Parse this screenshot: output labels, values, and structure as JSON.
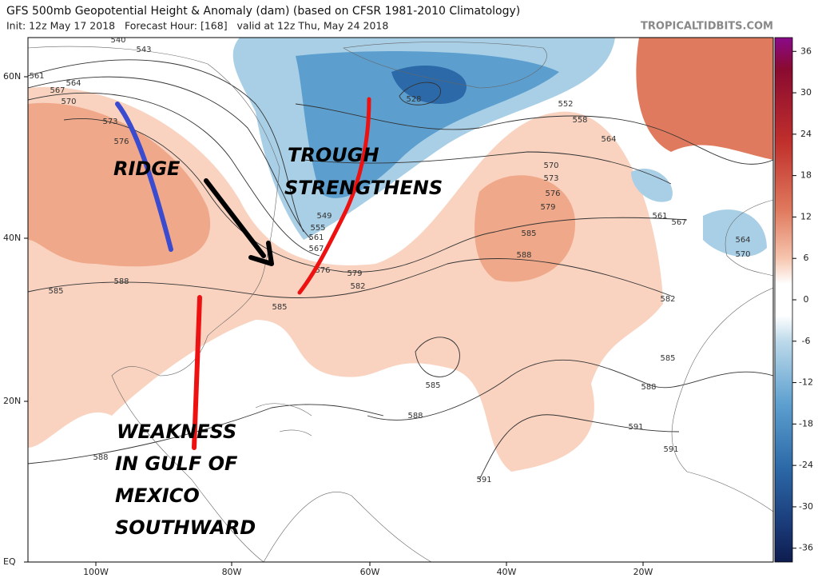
{
  "header": {
    "title": "GFS 500mb Geopotential Height & Anomaly (dam) (based on CFSR 1981-2010 Climatology)",
    "subtitle": "Init: 12z May 17 2018   Forecast Hour: [168]   valid at 12z Thu, May 24 2018",
    "watermark": "TROPICALTIDBITS.COM"
  },
  "map": {
    "lat_labels": [
      "60N",
      "40N",
      "20N",
      "EQ"
    ],
    "lon_labels": [
      "100W",
      "80W",
      "60W",
      "40W",
      "20W"
    ],
    "annotations": {
      "ridge": [
        "RIDGE"
      ],
      "trough": [
        "TROUGH",
        "STRENGTHENS"
      ],
      "weakness": [
        "WEAKNESS",
        "IN GULF OF",
        "MEXICO",
        "SOUTHWARD"
      ]
    },
    "contour_labels": [
      "540",
      "543",
      "561",
      "564",
      "567",
      "570",
      "573",
      "576",
      "528",
      "552",
      "558",
      "564",
      "570",
      "573",
      "576",
      "579",
      "585",
      "588",
      "561",
      "567",
      "564",
      "570",
      "579",
      "582",
      "585",
      "582",
      "585",
      "588",
      "585",
      "588",
      "591",
      "591",
      "591",
      "588",
      "585",
      "588",
      "549",
      "555",
      "561",
      "567",
      "576"
    ]
  },
  "colorbar": {
    "range": [
      -38,
      38
    ],
    "ticks": [
      36,
      30,
      24,
      18,
      12,
      6,
      0,
      -6,
      -12,
      -18,
      -24,
      -30,
      -36
    ]
  }
}
